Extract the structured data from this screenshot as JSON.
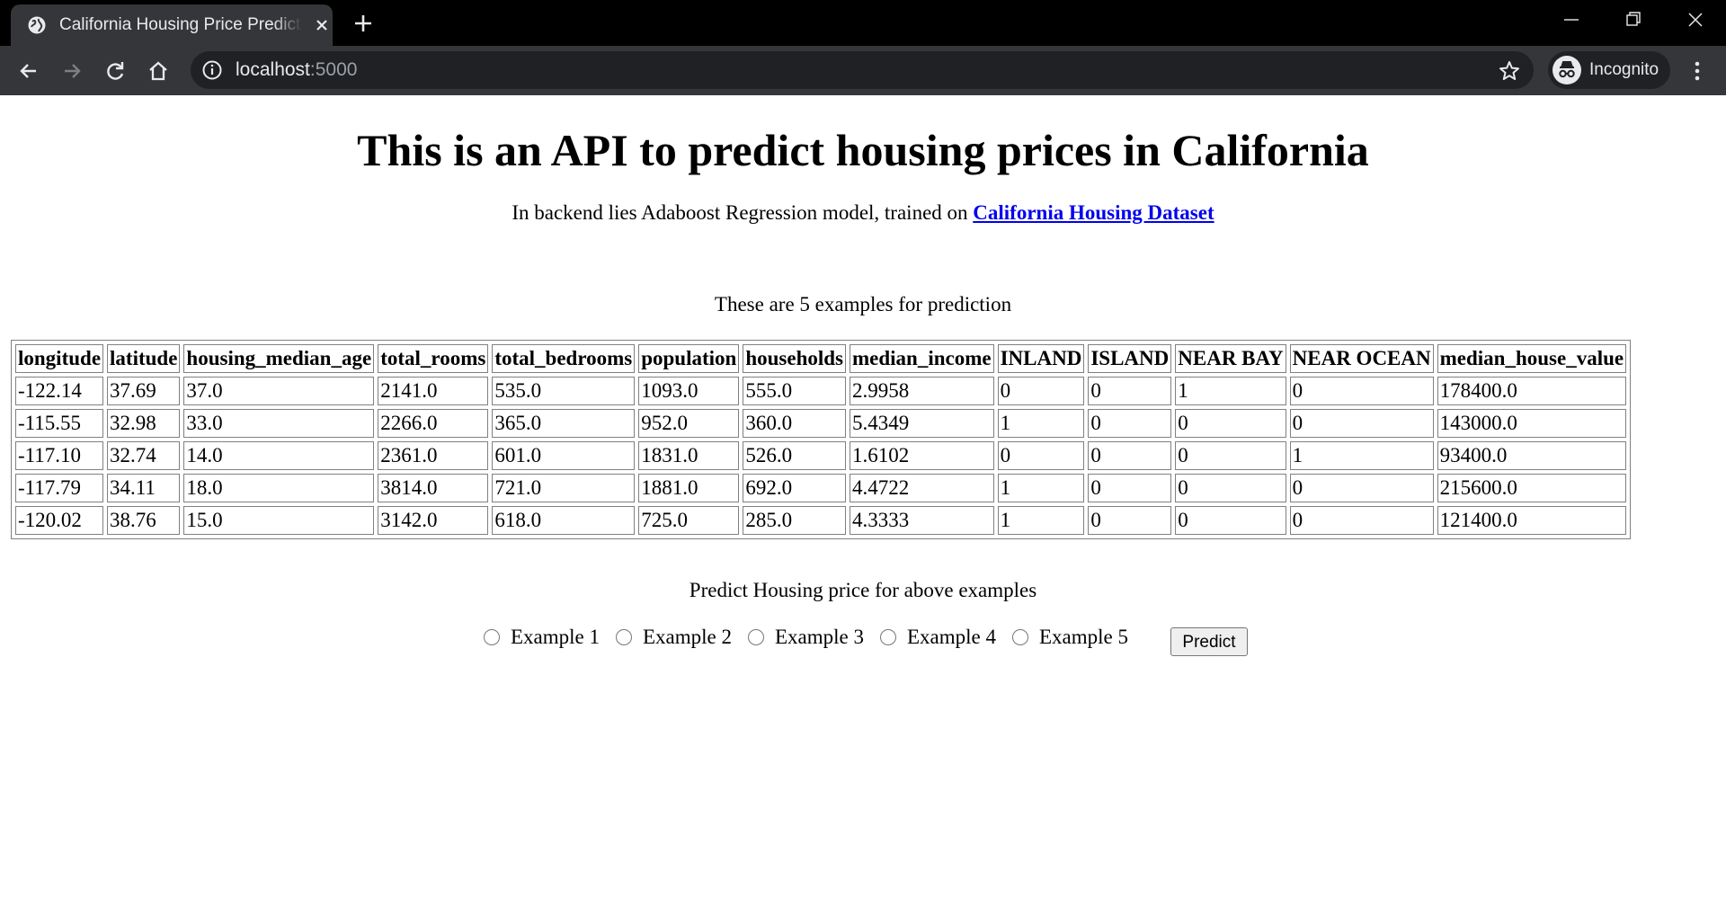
{
  "browser": {
    "tab_title": "California Housing Price Prediction",
    "url_host": "localhost",
    "url_port": ":5000",
    "profile_label": "Incognito",
    "icons": [
      "globe-icon",
      "close-icon",
      "new-tab-icon",
      "minimize-icon",
      "restore-icon",
      "close-window-icon",
      "back-icon",
      "forward-icon",
      "reload-icon",
      "home-icon",
      "info-icon",
      "star-icon",
      "incognito-icon",
      "menu-icon"
    ]
  },
  "page": {
    "title": "This is an API to predict housing prices in California",
    "subtitle_text": "In backend lies Adaboost Regression model, trained on ",
    "subtitle_link": "California Housing Dataset",
    "examples_caption": "These are 5 examples for prediction",
    "table": {
      "headers": [
        "longitude",
        "latitude",
        "housing_median_age",
        "total_rooms",
        "total_bedrooms",
        "population",
        "households",
        "median_income",
        "INLAND",
        "ISLAND",
        "NEAR BAY",
        "NEAR OCEAN",
        "median_house_value"
      ],
      "rows": [
        [
          "-122.14",
          "37.69",
          "37.0",
          "2141.0",
          "535.0",
          "1093.0",
          "555.0",
          "2.9958",
          "0",
          "0",
          "1",
          "0",
          "178400.0"
        ],
        [
          "-115.55",
          "32.98",
          "33.0",
          "2266.0",
          "365.0",
          "952.0",
          "360.0",
          "5.4349",
          "1",
          "0",
          "0",
          "0",
          "143000.0"
        ],
        [
          "-117.10",
          "32.74",
          "14.0",
          "2361.0",
          "601.0",
          "1831.0",
          "526.0",
          "1.6102",
          "0",
          "0",
          "0",
          "1",
          "93400.0"
        ],
        [
          "-117.79",
          "34.11",
          "18.0",
          "3814.0",
          "721.0",
          "1881.0",
          "692.0",
          "4.4722",
          "1",
          "0",
          "0",
          "0",
          "215600.0"
        ],
        [
          "-120.02",
          "38.76",
          "15.0",
          "3142.0",
          "618.0",
          "725.0",
          "285.0",
          "4.3333",
          "1",
          "0",
          "0",
          "0",
          "121400.0"
        ]
      ]
    },
    "predict_caption": "Predict Housing price for above examples",
    "options": [
      "Example 1",
      "Example 2",
      "Example 3",
      "Example 4",
      "Example 5"
    ],
    "predict_button": "Predict"
  }
}
